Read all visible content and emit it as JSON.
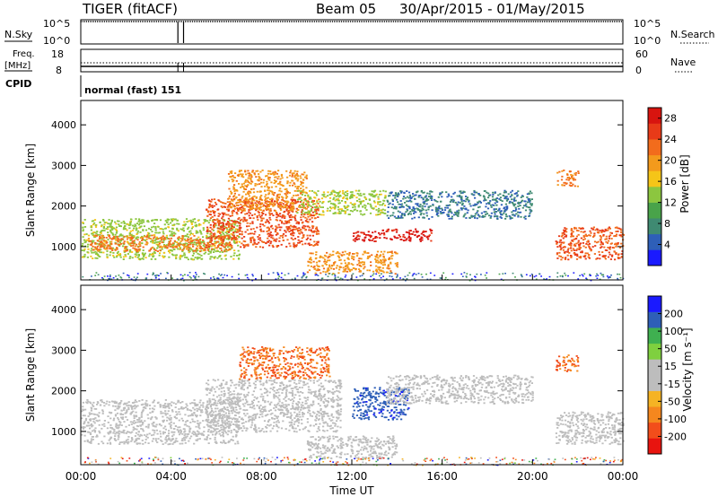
{
  "header": {
    "radar": "TIGER (fitACF)",
    "beam": "Beam 05",
    "date_range": "30/Apr/2015 - 01/May/2015"
  },
  "nsky_panel": {
    "label": "N.Sky",
    "right_label": "N.Search",
    "tick_top": "10^5",
    "tick_bottom": "10^0"
  },
  "freq_panel": {
    "label_line1": "Freq.",
    "label_line2": "[MHz]",
    "right_label": "Nave",
    "left_ticks": [
      "18",
      "8"
    ],
    "right_ticks": [
      "60",
      "0"
    ]
  },
  "cpid_panel": {
    "label": "CPID",
    "value": "normal (fast) 151"
  },
  "colors": {
    "power_scale": [
      "#1a1aff",
      "#2e5fb8",
      "#3f8a72",
      "#49a34a",
      "#8cc63f",
      "#f5c518",
      "#f39a1c",
      "#f26c1c",
      "#e83a18",
      "#d8140f"
    ],
    "velocity_scale": [
      "#e8140f",
      "#f24d1b",
      "#f5871e",
      "#f5b324",
      "#bdbdbd",
      "#bdbdbd",
      "#7fd03f",
      "#3fb050",
      "#2e5fb8",
      "#1a1aff"
    ]
  },
  "chart_data": [
    {
      "type": "heatmap",
      "title": "",
      "ylabel": "Slant Range [km]",
      "ylim": [
        180,
        4600
      ],
      "y_ticks": [
        "1000",
        "2000",
        "3000",
        "4000"
      ],
      "x_ticks": [
        "00:00",
        "04:00",
        "08:00",
        "12:00",
        "16:00",
        "20:00",
        "00:00"
      ],
      "colorbar": {
        "label": "Power [dB]",
        "ticks": [
          "4",
          "8",
          "12",
          "16",
          "20",
          "24",
          "28"
        ],
        "range": [
          0,
          30
        ]
      },
      "regions": [
        {
          "hours": [
            0.0,
            7.0
          ],
          "range_km": [
            700,
            1700
          ],
          "level": 14
        },
        {
          "hours": [
            0.3,
            6.8
          ],
          "range_km": [
            900,
            1300
          ],
          "level": 22
        },
        {
          "hours": [
            5.5,
            10.5
          ],
          "range_km": [
            1000,
            2200
          ],
          "level": 24
        },
        {
          "hours": [
            6.5,
            10.0
          ],
          "range_km": [
            1900,
            2900
          ],
          "level": 20
        },
        {
          "hours": [
            9.5,
            13.5
          ],
          "range_km": [
            1800,
            2400
          ],
          "level": 14
        },
        {
          "hours": [
            12.0,
            15.5
          ],
          "range_km": [
            1150,
            1450
          ],
          "level": 28
        },
        {
          "hours": [
            10.0,
            14.0
          ],
          "range_km": [
            350,
            900
          ],
          "level": 20
        },
        {
          "hours": [
            13.5,
            20.0
          ],
          "range_km": [
            1700,
            2400
          ],
          "level": 6
        },
        {
          "hours": [
            21.0,
            24.0
          ],
          "range_km": [
            700,
            1500
          ],
          "level": 24
        },
        {
          "hours": [
            21.0,
            22.0
          ],
          "range_km": [
            2500,
            2900
          ],
          "level": 22
        }
      ]
    },
    {
      "type": "heatmap",
      "title": "",
      "ylabel": "Slant Range [km]",
      "xlabel": "Time UT",
      "ylim": [
        180,
        4600
      ],
      "y_ticks": [
        "1000",
        "2000",
        "3000",
        "4000"
      ],
      "x_ticks": [
        "00:00",
        "04:00",
        "08:00",
        "12:00",
        "16:00",
        "20:00",
        "00:00"
      ],
      "colorbar": {
        "label": "Velocity [m s⁻¹]",
        "ticks": [
          "-200",
          "-100",
          "-50",
          "-15",
          "15",
          "50",
          "100",
          "200"
        ],
        "range": [
          -250,
          250
        ]
      },
      "regions": [
        {
          "hours": [
            0.0,
            7.0
          ],
          "range_km": [
            700,
            1800
          ],
          "level": 0
        },
        {
          "hours": [
            5.5,
            11.5
          ],
          "range_km": [
            1000,
            2300
          ],
          "level": 0
        },
        {
          "hours": [
            7.0,
            11.0
          ],
          "range_km": [
            2300,
            3100
          ],
          "level": -150
        },
        {
          "hours": [
            12.0,
            14.5
          ],
          "range_km": [
            1300,
            2100
          ],
          "level": 180
        },
        {
          "hours": [
            13.5,
            20.0
          ],
          "range_km": [
            1700,
            2400
          ],
          "level": 0
        },
        {
          "hours": [
            10.0,
            14.0
          ],
          "range_km": [
            350,
            900
          ],
          "level": 0
        },
        {
          "hours": [
            21.0,
            24.0
          ],
          "range_km": [
            700,
            1500
          ],
          "level": 0
        },
        {
          "hours": [
            21.0,
            22.0
          ],
          "range_km": [
            2500,
            2900
          ],
          "level": -150
        }
      ]
    }
  ]
}
